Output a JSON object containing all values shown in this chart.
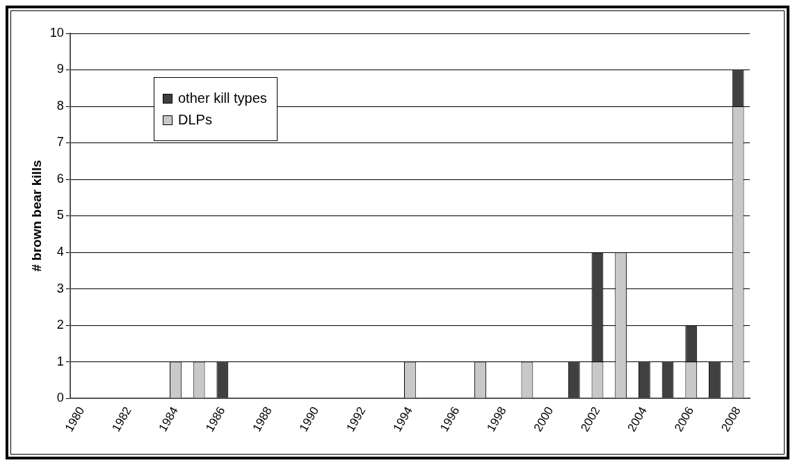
{
  "chart_data": {
    "type": "bar",
    "ylabel": "# brown bear kills",
    "stacked": true,
    "legend": "top left",
    "grid": "y",
    "categories": [
      "1980",
      null,
      "1982",
      null,
      "1984",
      null,
      "1986",
      null,
      "1988",
      null,
      "1990",
      null,
      "1992",
      null,
      "1994",
      null,
      "1996",
      null,
      "1998",
      null,
      "2000",
      null,
      "2002",
      null,
      "2004",
      null,
      "2006",
      null,
      "2008"
    ],
    "ylim": [
      0,
      10
    ],
    "yticks": [
      0,
      1,
      2,
      3,
      4,
      5,
      6,
      7,
      8,
      9,
      10
    ],
    "series": [
      {
        "name": "DLPs",
        "color": "#c8c8c8",
        "values": [
          0,
          0,
          0,
          0,
          1,
          1,
          0,
          0,
          0,
          0,
          0,
          0,
          0,
          0,
          1,
          0,
          0,
          1,
          0,
          1,
          0,
          0,
          1,
          4,
          0,
          0,
          1,
          0,
          8
        ]
      },
      {
        "name": "other kill types",
        "color": "#404040",
        "values": [
          0,
          0,
          0,
          0,
          0,
          0,
          1,
          0,
          0,
          0,
          0,
          0,
          0,
          0,
          0,
          0,
          0,
          0,
          0,
          0,
          0,
          1,
          3,
          0,
          1,
          1,
          1,
          1,
          1
        ]
      }
    ]
  }
}
